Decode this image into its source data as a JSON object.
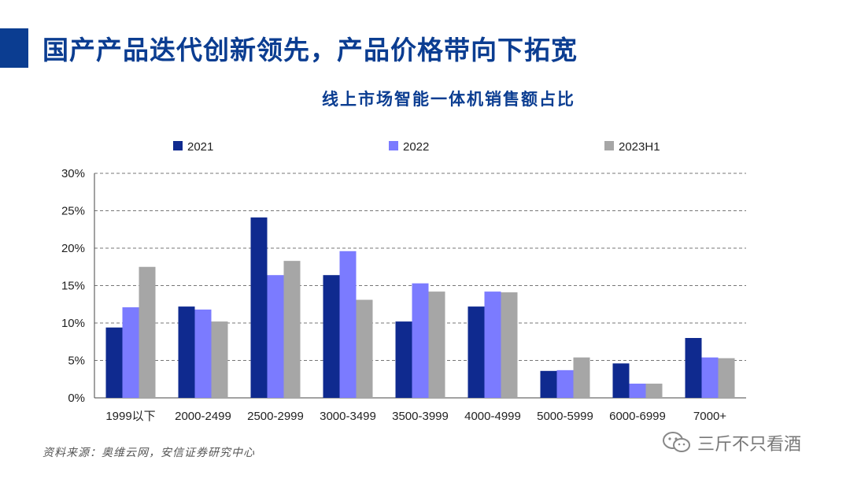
{
  "slide": {
    "title": "国产产品迭代创新领先，产品价格带向下拓宽",
    "source": "资料来源：奥维云网，安信证券研究中心",
    "watermark": "三斤不只看酒"
  },
  "colors": {
    "title": "#0b3d91",
    "s2021": "#0f2a8f",
    "s2022": "#7b7bff",
    "s2023H1": "#a6a6a6"
  },
  "chart_data": {
    "type": "bar",
    "title": "线上市场智能一体机销售额占比",
    "categories": [
      "1999以下",
      "2000-2499",
      "2500-2999",
      "3000-3499",
      "3500-3999",
      "4000-4999",
      "5000-5999",
      "6000-6999",
      "7000+"
    ],
    "series": [
      {
        "name": "2021",
        "color": "#0f2a8f",
        "values": [
          9.4,
          12.2,
          24.1,
          16.4,
          10.2,
          12.2,
          3.6,
          4.6,
          8.0
        ]
      },
      {
        "name": "2022",
        "color": "#7b7bff",
        "values": [
          12.1,
          11.8,
          16.4,
          19.6,
          15.3,
          14.2,
          3.7,
          1.9,
          5.4
        ]
      },
      {
        "name": "2023H1",
        "color": "#a6a6a6",
        "values": [
          17.5,
          10.2,
          18.3,
          13.1,
          14.2,
          14.1,
          5.4,
          1.9,
          5.3
        ]
      }
    ],
    "ylim": [
      0,
      30
    ],
    "yticks": [
      0,
      5,
      10,
      15,
      20,
      25,
      30
    ],
    "ytick_labels": [
      "0%",
      "5%",
      "10%",
      "15%",
      "20%",
      "25%",
      "30%"
    ],
    "grid": true,
    "legend": "top"
  }
}
